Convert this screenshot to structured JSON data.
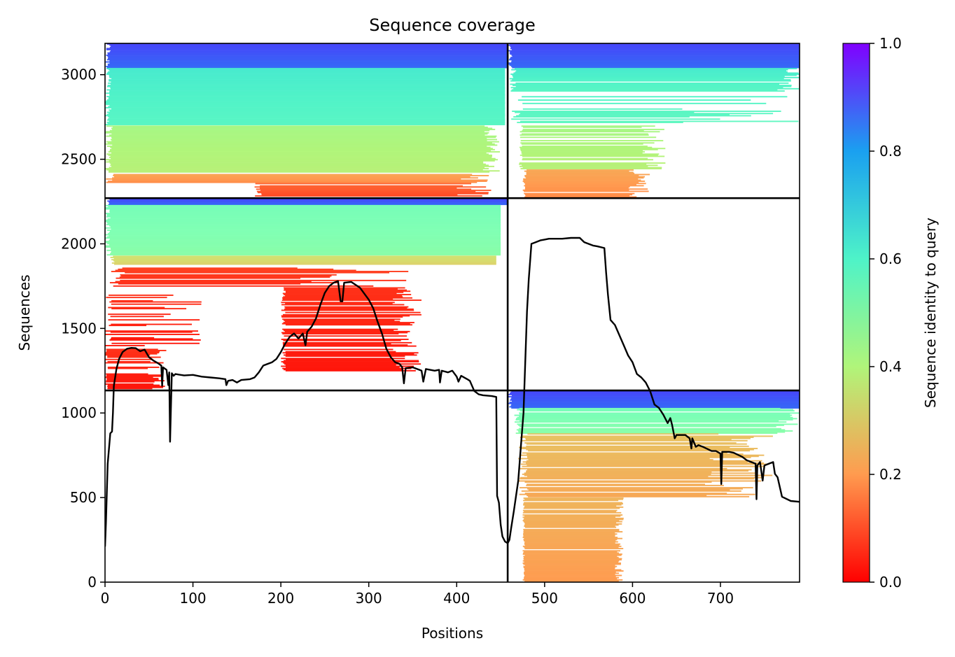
{
  "chart_data": {
    "type": "heatmap",
    "title": "Sequence coverage",
    "xlabel": "Positions",
    "ylabel": "Sequences",
    "xlim": [
      0,
      790
    ],
    "ylim": [
      0,
      3185
    ],
    "xticks": [
      0,
      100,
      200,
      300,
      400,
      500,
      600,
      700
    ],
    "yticks": [
      0,
      500,
      1000,
      1500,
      2000,
      2500,
      3000
    ],
    "xtick_labels": [
      "0",
      "100",
      "200",
      "300",
      "400",
      "500",
      "600",
      "700"
    ],
    "ytick_labels": [
      "0",
      "500",
      "1000",
      "1500",
      "2000",
      "2500",
      "3000"
    ],
    "colorbar": {
      "label": "Sequence identity to query",
      "range": [
        0,
        1
      ],
      "ticks": [
        0.0,
        0.2,
        0.4,
        0.6,
        0.8,
        1.0
      ],
      "tick_labels": [
        "0.0",
        "0.2",
        "0.4",
        "0.6",
        "0.8",
        "1.0"
      ],
      "colormap": "rainbow_r"
    },
    "domain_boundary_x": 458,
    "domain_boundary_y": [
      1133,
      2270
    ],
    "coverage_blocks": [
      {
        "x0": 0,
        "x1": 458,
        "y0": 3040,
        "y1": 3185,
        "identity": 0.88,
        "fill": 1.0
      },
      {
        "x0": 0,
        "x1": 455,
        "y0": 2700,
        "y1": 3040,
        "identity": 0.6,
        "fill": 1.0
      },
      {
        "x0": 0,
        "x1": 450,
        "y0": 2420,
        "y1": 2700,
        "identity": 0.4,
        "fill": 0.95
      },
      {
        "x0": 0,
        "x1": 440,
        "y0": 2360,
        "y1": 2420,
        "identity": 0.2,
        "fill": 0.85
      },
      {
        "x0": 170,
        "x1": 440,
        "y0": 2275,
        "y1": 2360,
        "identity": 0.12,
        "fill": 0.8
      },
      {
        "x0": 458,
        "x1": 790,
        "y0": 3040,
        "y1": 3185,
        "identity": 0.88,
        "fill": 1.0
      },
      {
        "x0": 460,
        "x1": 790,
        "y0": 2900,
        "y1": 3040,
        "identity": 0.6,
        "fill": 0.9
      },
      {
        "x0": 460,
        "x1": 790,
        "y0": 2700,
        "y1": 2900,
        "identity": 0.58,
        "fill": 0.55
      },
      {
        "x0": 470,
        "x1": 640,
        "y0": 2440,
        "y1": 2700,
        "identity": 0.4,
        "fill": 0.8
      },
      {
        "x0": 475,
        "x1": 620,
        "y0": 2275,
        "y1": 2440,
        "identity": 0.2,
        "fill": 0.8
      },
      {
        "x0": 0,
        "x1": 458,
        "y0": 2230,
        "y1": 2270,
        "identity": 0.88,
        "fill": 1.0
      },
      {
        "x0": 0,
        "x1": 450,
        "y0": 1930,
        "y1": 2230,
        "identity": 0.5,
        "fill": 1.0
      },
      {
        "x0": 5,
        "x1": 445,
        "y0": 1880,
        "y1": 1930,
        "identity": 0.3,
        "fill": 1.0
      },
      {
        "x0": 5,
        "x1": 350,
        "y0": 1750,
        "y1": 1880,
        "identity": 0.08,
        "fill": 0.55
      },
      {
        "x0": 200,
        "x1": 360,
        "y0": 1250,
        "y1": 1750,
        "identity": 0.05,
        "fill": 0.75
      },
      {
        "x0": 0,
        "x1": 110,
        "y0": 1380,
        "y1": 1700,
        "identity": 0.05,
        "fill": 0.3
      },
      {
        "x0": 0,
        "x1": 70,
        "y0": 1140,
        "y1": 1380,
        "identity": 0.05,
        "fill": 0.65
      },
      {
        "x0": 458,
        "x1": 790,
        "y0": 1030,
        "y1": 1133,
        "identity": 0.88,
        "fill": 1.0
      },
      {
        "x0": 465,
        "x1": 790,
        "y0": 880,
        "y1": 1030,
        "identity": 0.5,
        "fill": 0.9
      },
      {
        "x0": 470,
        "x1": 760,
        "y0": 500,
        "y1": 880,
        "identity": 0.24,
        "fill": 0.7
      },
      {
        "x0": 475,
        "x1": 590,
        "y0": 0,
        "y1": 500,
        "identity": 0.22,
        "fill": 0.9
      }
    ],
    "coverage_line": [
      [
        0,
        210
      ],
      [
        1,
        350
      ],
      [
        2,
        520
      ],
      [
        3,
        700
      ],
      [
        5,
        820
      ],
      [
        6,
        880
      ],
      [
        8,
        890
      ],
      [
        9,
        1000
      ],
      [
        10,
        1160
      ],
      [
        13,
        1260
      ],
      [
        16,
        1320
      ],
      [
        20,
        1360
      ],
      [
        25,
        1380
      ],
      [
        30,
        1385
      ],
      [
        35,
        1383
      ],
      [
        40,
        1365
      ],
      [
        45,
        1375
      ],
      [
        50,
        1330
      ],
      [
        55,
        1310
      ],
      [
        60,
        1295
      ],
      [
        64,
        1280
      ],
      [
        65,
        1160
      ],
      [
        66,
        1270
      ],
      [
        70,
        1255
      ],
      [
        72,
        1165
      ],
      [
        73,
        1240
      ],
      [
        74,
        830
      ],
      [
        76,
        1235
      ],
      [
        78,
        1220
      ],
      [
        80,
        1230
      ],
      [
        90,
        1222
      ],
      [
        100,
        1225
      ],
      [
        110,
        1215
      ],
      [
        120,
        1210
      ],
      [
        130,
        1205
      ],
      [
        137,
        1200
      ],
      [
        138,
        1165
      ],
      [
        140,
        1190
      ],
      [
        145,
        1195
      ],
      [
        150,
        1180
      ],
      [
        155,
        1195
      ],
      [
        165,
        1200
      ],
      [
        170,
        1210
      ],
      [
        175,
        1240
      ],
      [
        180,
        1280
      ],
      [
        190,
        1300
      ],
      [
        195,
        1320
      ],
      [
        200,
        1360
      ],
      [
        205,
        1410
      ],
      [
        210,
        1450
      ],
      [
        215,
        1470
      ],
      [
        220,
        1440
      ],
      [
        225,
        1470
      ],
      [
        228,
        1400
      ],
      [
        230,
        1480
      ],
      [
        235,
        1510
      ],
      [
        240,
        1560
      ],
      [
        245,
        1640
      ],
      [
        250,
        1710
      ],
      [
        255,
        1750
      ],
      [
        260,
        1770
      ],
      [
        265,
        1780
      ],
      [
        268,
        1660
      ],
      [
        270,
        1660
      ],
      [
        272,
        1770
      ],
      [
        280,
        1775
      ],
      [
        290,
        1740
      ],
      [
        300,
        1670
      ],
      [
        305,
        1620
      ],
      [
        310,
        1540
      ],
      [
        315,
        1470
      ],
      [
        320,
        1380
      ],
      [
        325,
        1330
      ],
      [
        330,
        1300
      ],
      [
        335,
        1290
      ],
      [
        338,
        1270
      ],
      [
        340,
        1175
      ],
      [
        342,
        1265
      ],
      [
        350,
        1270
      ],
      [
        355,
        1260
      ],
      [
        360,
        1250
      ],
      [
        362,
        1185
      ],
      [
        365,
        1260
      ],
      [
        375,
        1250
      ],
      [
        380,
        1255
      ],
      [
        381,
        1180
      ],
      [
        383,
        1250
      ],
      [
        390,
        1240
      ],
      [
        395,
        1250
      ],
      [
        400,
        1215
      ],
      [
        402,
        1185
      ],
      [
        405,
        1220
      ],
      [
        412,
        1200
      ],
      [
        415,
        1190
      ],
      [
        420,
        1130
      ],
      [
        425,
        1110
      ],
      [
        430,
        1105
      ],
      [
        440,
        1100
      ],
      [
        445,
        1095
      ],
      [
        446,
        510
      ],
      [
        448,
        470
      ],
      [
        450,
        340
      ],
      [
        452,
        270
      ],
      [
        455,
        240
      ],
      [
        458,
        230
      ],
      [
        460,
        250
      ],
      [
        462,
        320
      ],
      [
        465,
        420
      ],
      [
        470,
        600
      ],
      [
        473,
        800
      ],
      [
        476,
        1000
      ],
      [
        478,
        1300
      ],
      [
        480,
        1600
      ],
      [
        482,
        1790
      ],
      [
        485,
        2000
      ],
      [
        490,
        2010
      ],
      [
        495,
        2020
      ],
      [
        500,
        2025
      ],
      [
        505,
        2030
      ],
      [
        510,
        2030
      ],
      [
        520,
        2030
      ],
      [
        530,
        2035
      ],
      [
        540,
        2035
      ],
      [
        545,
        2010
      ],
      [
        550,
        2000
      ],
      [
        555,
        1990
      ],
      [
        560,
        1985
      ],
      [
        568,
        1975
      ],
      [
        570,
        1830
      ],
      [
        572,
        1700
      ],
      [
        575,
        1550
      ],
      [
        580,
        1520
      ],
      [
        590,
        1400
      ],
      [
        595,
        1340
      ],
      [
        600,
        1300
      ],
      [
        605,
        1230
      ],
      [
        610,
        1210
      ],
      [
        615,
        1180
      ],
      [
        620,
        1130
      ],
      [
        625,
        1050
      ],
      [
        630,
        1030
      ],
      [
        635,
        990
      ],
      [
        640,
        940
      ],
      [
        643,
        970
      ],
      [
        645,
        930
      ],
      [
        648,
        850
      ],
      [
        650,
        870
      ],
      [
        660,
        870
      ],
      [
        665,
        850
      ],
      [
        667,
        790
      ],
      [
        668,
        850
      ],
      [
        672,
        800
      ],
      [
        675,
        810
      ],
      [
        680,
        800
      ],
      [
        690,
        775
      ],
      [
        695,
        775
      ],
      [
        700,
        760
      ],
      [
        701,
        580
      ],
      [
        702,
        770
      ],
      [
        710,
        770
      ],
      [
        715,
        765
      ],
      [
        725,
        740
      ],
      [
        730,
        720
      ],
      [
        740,
        700
      ],
      [
        741,
        490
      ],
      [
        742,
        690
      ],
      [
        745,
        710
      ],
      [
        748,
        600
      ],
      [
        750,
        690
      ],
      [
        755,
        700
      ],
      [
        760,
        710
      ],
      [
        762,
        640
      ],
      [
        765,
        620
      ],
      [
        770,
        505
      ],
      [
        780,
        480
      ],
      [
        790,
        475
      ]
    ]
  }
}
